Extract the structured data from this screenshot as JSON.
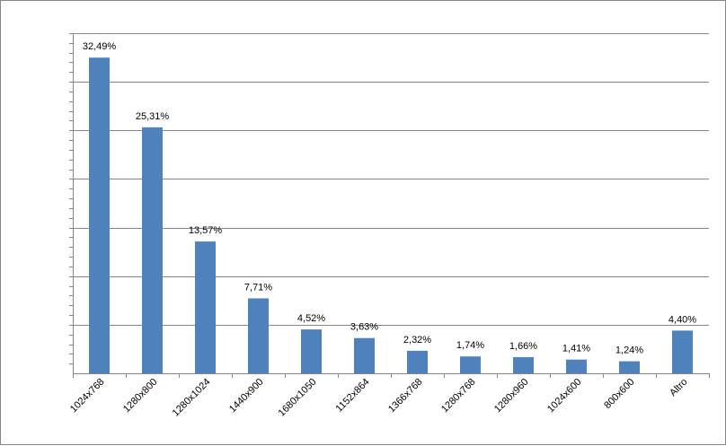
{
  "chart_data": {
    "type": "bar",
    "categories": [
      "1024x768",
      "1280x800",
      "1280x1024",
      "1440x900",
      "1680x1050",
      "1152x864",
      "1366x768",
      "1280x768",
      "1280x960",
      "1024x600",
      "800x600",
      "Altro"
    ],
    "values": [
      32.49,
      25.31,
      13.57,
      7.71,
      4.52,
      3.63,
      2.32,
      1.74,
      1.66,
      1.41,
      1.24,
      4.4
    ],
    "data_labels": [
      "32,49%",
      "25,31%",
      "13,57%",
      "7,71%",
      "4,52%",
      "3,63%",
      "2,32%",
      "1,74%",
      "1,66%",
      "1,41%",
      "1,24%",
      "4,40%"
    ],
    "ylim": [
      0,
      35
    ],
    "ytick_interval": 5,
    "minor_tick_interval": 1,
    "grid": true,
    "legend": "none",
    "bar_color": "#4F81BD",
    "gridline_color": "#868686",
    "title": "",
    "xlabel": "",
    "ylabel": ""
  }
}
